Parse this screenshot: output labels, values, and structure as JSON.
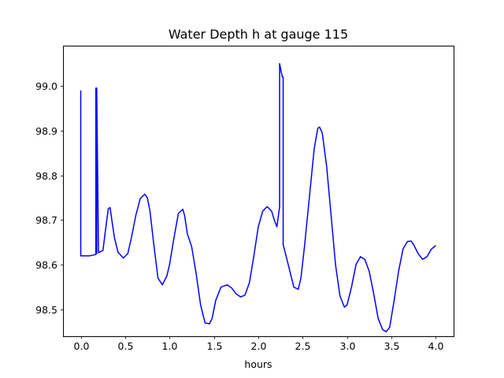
{
  "chart_data": {
    "type": "line",
    "title": "Water Depth h at gauge 115",
    "xlabel": "hours",
    "ylabel": "",
    "xlim": [
      -0.2,
      4.2
    ],
    "ylim": [
      98.44,
      99.09
    ],
    "xticks": [
      0.0,
      0.5,
      1.0,
      1.5,
      2.0,
      2.5,
      3.0,
      3.5,
      4.0
    ],
    "xtick_labels": [
      "0.0",
      "0.5",
      "1.0",
      "1.5",
      "2.0",
      "2.5",
      "3.0",
      "3.5",
      "4.0"
    ],
    "yticks": [
      98.5,
      98.6,
      98.7,
      98.8,
      98.9,
      99.0
    ],
    "ytick_labels": [
      "98.5",
      "98.6",
      "98.7",
      "98.8",
      "98.9",
      "99.0"
    ],
    "grid": false,
    "series": [
      {
        "color": "#0000ff",
        "x": [
          0.0,
          0.0,
          0.003,
          0.05,
          0.1,
          0.15,
          0.17,
          0.17,
          0.175,
          0.175,
          0.18,
          0.18,
          0.2,
          0.25,
          0.28,
          0.31,
          0.33,
          0.35,
          0.38,
          0.42,
          0.48,
          0.53,
          0.57,
          0.62,
          0.67,
          0.72,
          0.75,
          0.78,
          0.82,
          0.87,
          0.92,
          0.97,
          1.0,
          1.05,
          1.1,
          1.15,
          1.17,
          1.2,
          1.25,
          1.3,
          1.35,
          1.4,
          1.45,
          1.48,
          1.52,
          1.58,
          1.65,
          1.7,
          1.75,
          1.8,
          1.85,
          1.9,
          1.95,
          2.0,
          2.05,
          2.1,
          2.15,
          2.18,
          2.21,
          2.24,
          2.24,
          2.26,
          2.27,
          2.28,
          2.28,
          2.3,
          2.35,
          2.4,
          2.45,
          2.48,
          2.52,
          2.58,
          2.63,
          2.67,
          2.69,
          2.72,
          2.77,
          2.82,
          2.87,
          2.92,
          2.97,
          3.0,
          3.05,
          3.1,
          3.15,
          3.2,
          3.25,
          3.3,
          3.35,
          3.4,
          3.44,
          3.48,
          3.53,
          3.58,
          3.63,
          3.68,
          3.72,
          3.75,
          3.8,
          3.85,
          3.9,
          3.95,
          4.0
        ],
        "y": [
          98.99,
          98.62,
          98.62,
          98.62,
          98.62,
          98.622,
          98.623,
          98.995,
          98.995,
          98.625,
          98.625,
          98.995,
          98.627,
          98.632,
          98.68,
          98.725,
          98.728,
          98.7,
          98.66,
          98.628,
          98.615,
          98.625,
          98.66,
          98.71,
          98.748,
          98.758,
          98.75,
          98.72,
          98.65,
          98.57,
          98.555,
          98.575,
          98.6,
          98.66,
          98.715,
          98.724,
          98.71,
          98.67,
          98.64,
          98.58,
          98.51,
          98.47,
          98.468,
          98.48,
          98.52,
          98.55,
          98.555,
          98.548,
          98.535,
          98.528,
          98.532,
          98.56,
          98.62,
          98.685,
          98.72,
          98.73,
          98.72,
          98.7,
          98.685,
          98.73,
          99.05,
          99.03,
          99.02,
          99.02,
          98.645,
          98.63,
          98.59,
          98.55,
          98.545,
          98.57,
          98.64,
          98.76,
          98.86,
          98.905,
          98.908,
          98.895,
          98.82,
          98.71,
          98.6,
          98.53,
          98.505,
          98.51,
          98.55,
          98.6,
          98.618,
          98.612,
          98.585,
          98.535,
          98.48,
          98.455,
          98.45,
          98.46,
          98.52,
          98.585,
          98.635,
          98.652,
          98.653,
          98.645,
          98.625,
          98.612,
          98.618,
          98.635,
          98.643
        ]
      }
    ]
  }
}
